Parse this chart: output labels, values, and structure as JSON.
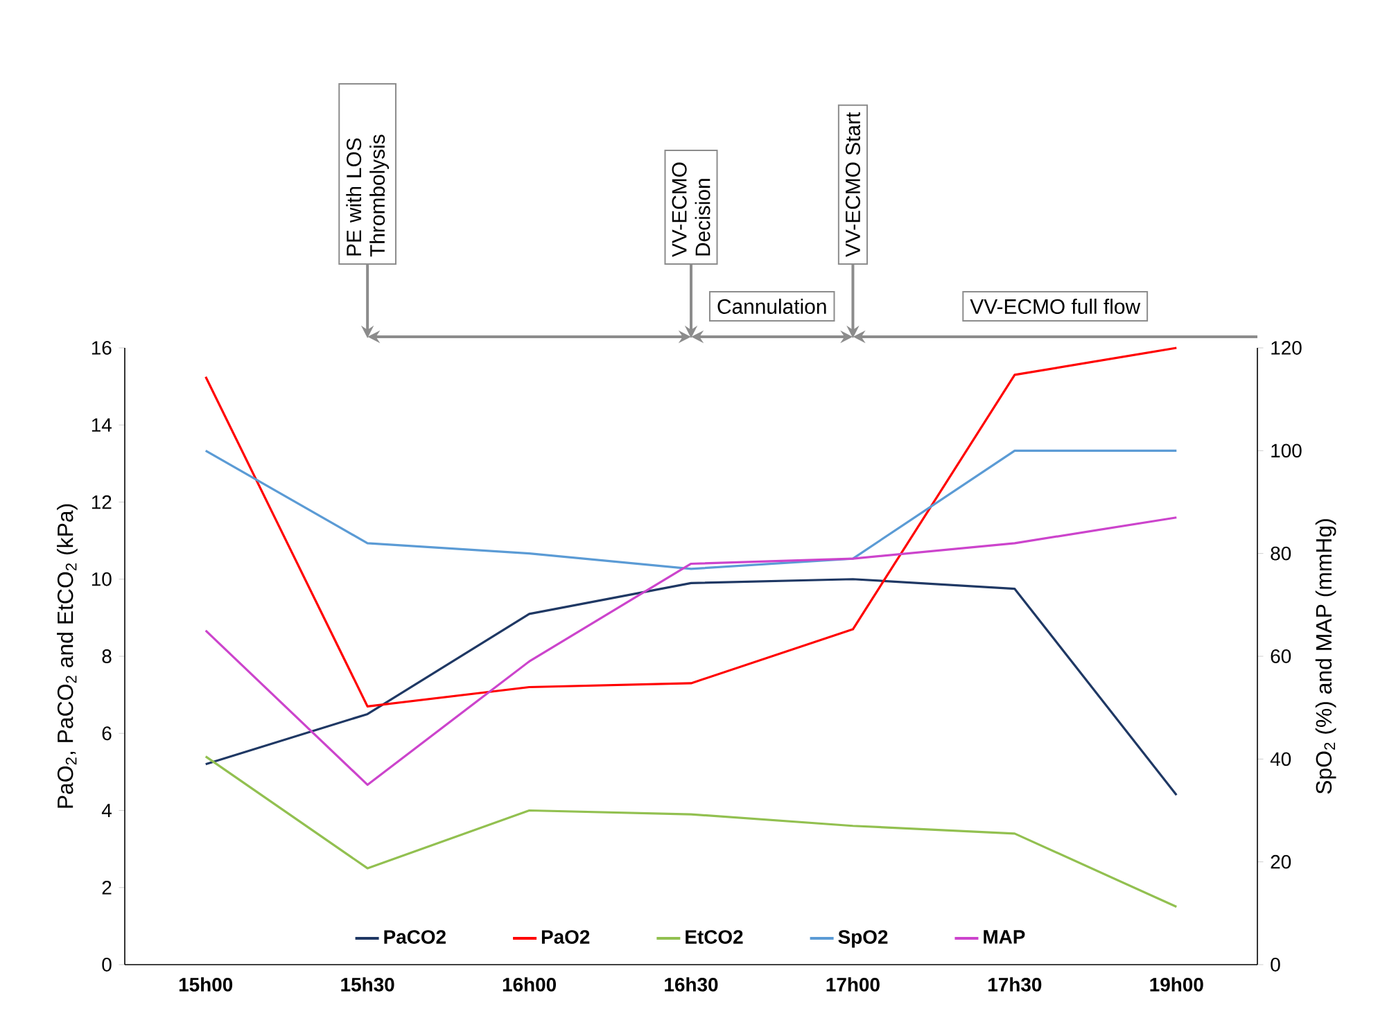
{
  "chart_data": {
    "type": "line",
    "categories": [
      "15h00",
      "15h30",
      "16h00",
      "16h30",
      "17h00",
      "17h30",
      "19h00"
    ],
    "ylabel": "PaO$_{2}$, PaCO$_{2}$ and EtCO$_{2}$ (kPa)",
    "y2label": "SpO$_{2}$ (%) and MAP (mmHg)",
    "ylim": [
      0,
      16
    ],
    "yticks": [
      0,
      2,
      4,
      6,
      8,
      10,
      12,
      14,
      16
    ],
    "y2lim": [
      0,
      120
    ],
    "y2ticks": [
      0,
      20,
      40,
      60,
      80,
      100,
      120
    ],
    "series": [
      {
        "name": "PaCO2",
        "color": "#1f3864",
        "values": [
          5.2,
          6.5,
          9.1,
          9.9,
          10.0,
          9.75,
          4.4
        ]
      },
      {
        "name": "PaO2",
        "color": "#ff0000",
        "values": [
          15.25,
          6.7,
          7.2,
          7.3,
          8.7,
          15.3,
          16.0
        ]
      },
      {
        "name": "EtCO2",
        "color": "#92c050",
        "values": [
          5.4,
          2.5,
          4.0,
          3.9,
          3.6,
          3.4,
          1.5
        ]
      },
      {
        "name": "SpO2",
        "color": "#5b9bd5",
        "axis": "y2",
        "values": [
          100,
          82,
          80,
          77,
          79,
          100,
          100
        ]
      },
      {
        "name": "MAP",
        "color": "#cc44cc",
        "axis": "y2",
        "values": [
          65,
          35,
          59,
          78,
          79,
          82,
          87
        ]
      }
    ],
    "annotations": [
      "PE with LOS Thrombolysis",
      "VV-ECMO Decision",
      "Cannulation",
      "VV-ECMO Start",
      "VV-ECMO full flow"
    ],
    "legend": "bottom",
    "grid": false,
    "marker": "none",
    "line_style": "solid"
  }
}
